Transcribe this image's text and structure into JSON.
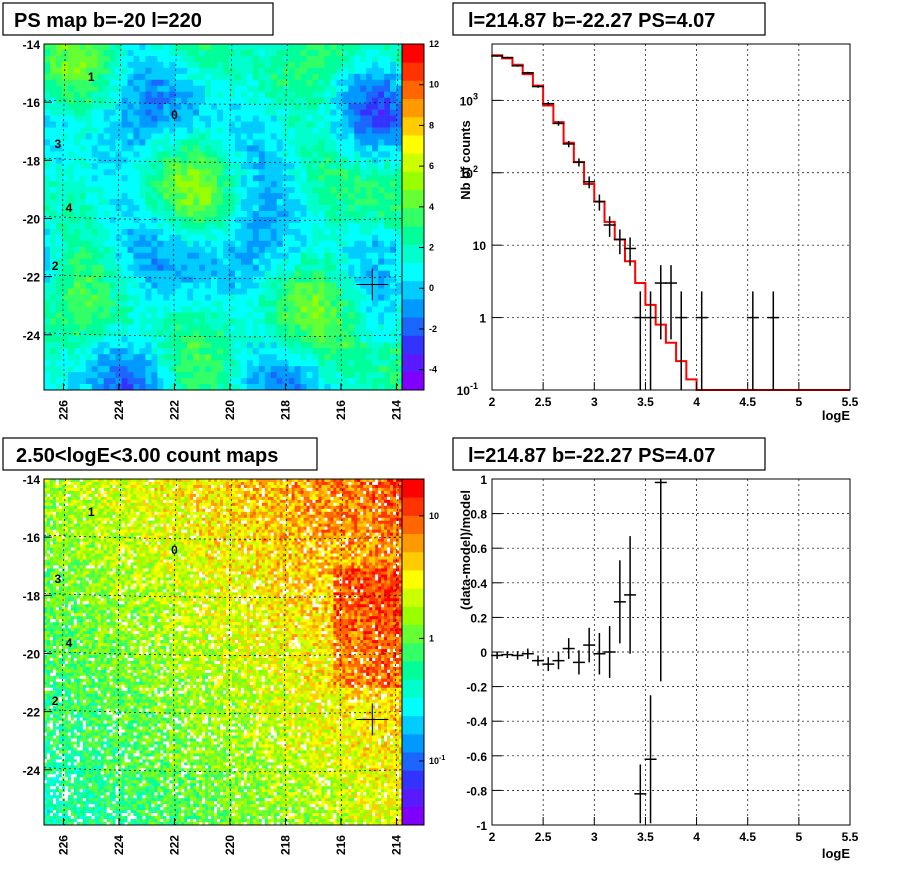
{
  "panels": {
    "top_left_title": "PS map b=-20 l=220",
    "top_right_title": "l=214.87 b=-22.27 PS=4.07",
    "bottom_left_title": "2.50<logE<3.00 count maps",
    "bottom_right_title": "l=214.87 b=-22.27 PS=4.07"
  },
  "chart_data": [
    {
      "type": "heatmap",
      "title": "PS map b=-20 l=220",
      "x_ticks": [
        "226",
        "224",
        "222",
        "220",
        "218",
        "216",
        "214"
      ],
      "x_tick_values": [
        226,
        224,
        222,
        220,
        218,
        216,
        214
      ],
      "xlim": [
        226.7,
        213.8
      ],
      "y_ticks": [
        "-14",
        "-16",
        "-18",
        "-20",
        "-22",
        "-24"
      ],
      "y_tick_values": [
        -14,
        -16,
        -18,
        -20,
        -22,
        -24
      ],
      "ylim": [
        -25.9,
        -14
      ],
      "colorbar_ticks": [
        "12",
        "10",
        "8",
        "6",
        "4",
        "2",
        "0",
        "-2",
        "-4"
      ],
      "colorbar_values": [
        12,
        10,
        8,
        6,
        4,
        2,
        0,
        -2,
        -4
      ],
      "colorbar_range": [
        -5,
        12
      ],
      "markers": [
        {
          "label": "1",
          "l": 225.0,
          "b": -15.1
        },
        {
          "label": "0",
          "l": 222.0,
          "b": -16.4
        },
        {
          "label": "3",
          "l": 226.2,
          "b": -17.4
        },
        {
          "label": "4",
          "l": 225.8,
          "b": -19.6
        },
        {
          "label": "2",
          "l": 226.3,
          "b": -21.6
        }
      ],
      "crosshair": {
        "l": 214.87,
        "b": -22.27
      }
    },
    {
      "type": "line",
      "title": "l=214.87 b=-22.27 PS=4.07",
      "xlabel": "logE",
      "ylabel": "Nb of counts",
      "yscale": "log",
      "xlim": [
        2,
        5.5
      ],
      "ylim": [
        0.1,
        6000
      ],
      "x_ticks": [
        "2",
        "2.5",
        "3",
        "3.5",
        "4",
        "4.5",
        "5",
        "5.5"
      ],
      "x_tick_values": [
        2,
        2.5,
        3,
        3.5,
        4,
        4.5,
        5,
        5.5
      ],
      "y_ticks": [
        "10",
        "1",
        "10"
      ],
      "y_tick_values": [
        1000,
        100,
        10,
        1,
        0.1
      ],
      "y_tick_exponents": [
        "3",
        "2",
        "",
        "",
        "-1"
      ],
      "model_series": {
        "name": "model",
        "color": "#ff0000",
        "edges": [
          2.0,
          2.1,
          2.2,
          2.3,
          2.4,
          2.5,
          2.6,
          2.7,
          2.8,
          2.9,
          3.0,
          3.1,
          3.2,
          3.3,
          3.4,
          3.5,
          3.6,
          3.7,
          3.8,
          3.9,
          4.0,
          5.5
        ],
        "values": [
          4200,
          3800,
          3100,
          2300,
          1600,
          850,
          500,
          260,
          140,
          70,
          40,
          21,
          12,
          6,
          3,
          1.5,
          0.8,
          0.45,
          0.25,
          0.14,
          0.1
        ]
      },
      "data_points": {
        "name": "data",
        "x": [
          2.05,
          2.15,
          2.25,
          2.35,
          2.45,
          2.55,
          2.65,
          2.75,
          2.85,
          2.95,
          3.05,
          3.15,
          3.25,
          3.35,
          3.45,
          3.55,
          3.65,
          3.75,
          3.85,
          4.05,
          4.55,
          4.75
        ],
        "y": [
          4100,
          3900,
          3000,
          2400,
          1550,
          900,
          480,
          250,
          140,
          75,
          40,
          19,
          12,
          9,
          1,
          1,
          3,
          3,
          1,
          1,
          1,
          1
        ],
        "yerr_low": [
          100,
          100,
          90,
          80,
          60,
          45,
          35,
          25,
          18,
          14,
          10,
          6,
          4.5,
          3.8,
          0.95,
          0.95,
          2.5,
          2.5,
          0.95,
          0.95,
          0.95,
          0.95
        ],
        "yerr_high": [
          100,
          100,
          90,
          80,
          60,
          45,
          35,
          25,
          18,
          14,
          10,
          6,
          4.5,
          3.8,
          1.3,
          1.3,
          2.3,
          2.3,
          1.3,
          1.3,
          1.3,
          1.3
        ]
      }
    },
    {
      "type": "heatmap",
      "title": "2.50<logE<3.00 count maps",
      "x_ticks": [
        "226",
        "224",
        "222",
        "220",
        "218",
        "216",
        "214"
      ],
      "x_tick_values": [
        226,
        224,
        222,
        220,
        218,
        216,
        214
      ],
      "xlim": [
        226.7,
        213.8
      ],
      "y_ticks": [
        "-14",
        "-16",
        "-18",
        "-20",
        "-22",
        "-24"
      ],
      "y_tick_values": [
        -14,
        -16,
        -18,
        -20,
        -22,
        -24
      ],
      "ylim": [
        -25.9,
        -14
      ],
      "colorbar_scale": "log",
      "colorbar_ticks": [
        "10",
        "1",
        "10"
      ],
      "colorbar_values": [
        10,
        1,
        0.1
      ],
      "colorbar_exponents": [
        "",
        "",
        "-1"
      ],
      "colorbar_range": [
        0.03,
        20
      ],
      "markers": [
        {
          "label": "1",
          "l": 225.0,
          "b": -15.1
        },
        {
          "label": "0",
          "l": 222.0,
          "b": -16.4
        },
        {
          "label": "3",
          "l": 226.2,
          "b": -17.4
        },
        {
          "label": "4",
          "l": 225.8,
          "b": -19.6
        },
        {
          "label": "2",
          "l": 226.3,
          "b": -21.6
        }
      ],
      "crosshair": {
        "l": 214.87,
        "b": -22.27
      }
    },
    {
      "type": "scatter",
      "title": "l=214.87 b=-22.27 PS=4.07",
      "xlabel": "logE",
      "ylabel": "(data-model)/model",
      "xlim": [
        2,
        5.5
      ],
      "ylim": [
        -1,
        1
      ],
      "x_ticks": [
        "2",
        "2.5",
        "3",
        "3.5",
        "4",
        "4.5",
        "5",
        "5.5"
      ],
      "x_tick_values": [
        2,
        2.5,
        3,
        3.5,
        4,
        4.5,
        5,
        5.5
      ],
      "y_ticks": [
        "1",
        "0.8",
        "0.6",
        "0.4",
        "0.2",
        "0",
        "-0.2",
        "-0.4",
        "-0.6",
        "-0.8",
        "-1"
      ],
      "y_tick_values": [
        1,
        0.8,
        0.6,
        0.4,
        0.2,
        0,
        -0.2,
        -0.4,
        -0.6,
        -0.8,
        -1
      ],
      "points": {
        "x": [
          2.05,
          2.15,
          2.25,
          2.35,
          2.45,
          2.55,
          2.65,
          2.75,
          2.85,
          2.95,
          3.05,
          3.15,
          3.25,
          3.35,
          3.45,
          3.55,
          3.65
        ],
        "y": [
          -0.02,
          -0.015,
          -0.02,
          -0.01,
          -0.05,
          -0.07,
          -0.05,
          0.02,
          -0.06,
          0.04,
          -0.01,
          0.0,
          0.29,
          0.33,
          -0.82,
          -0.62,
          0.98
        ],
        "yerr": [
          0.02,
          0.02,
          0.025,
          0.03,
          0.03,
          0.04,
          0.05,
          0.06,
          0.07,
          0.1,
          0.12,
          0.15,
          0.24,
          0.34,
          0.17,
          0.37,
          1.15
        ]
      }
    }
  ]
}
